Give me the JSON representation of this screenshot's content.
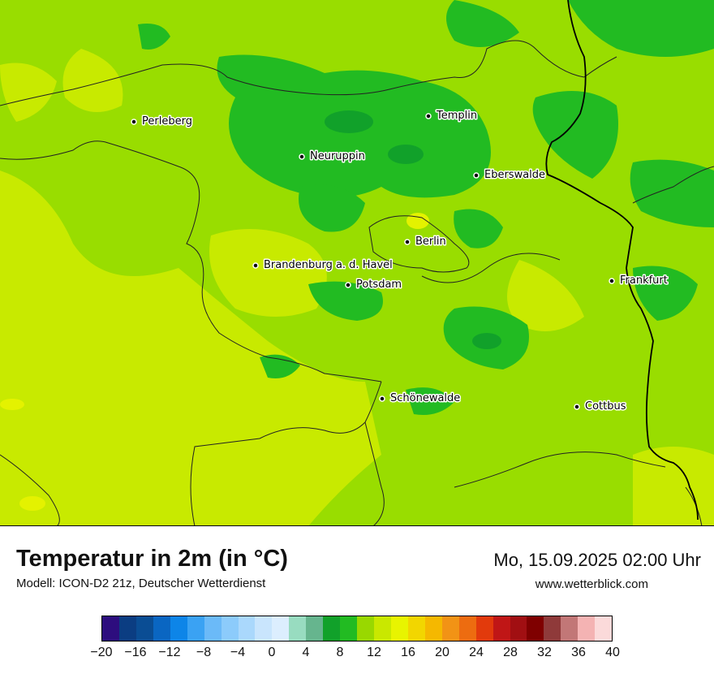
{
  "map": {
    "cities": [
      {
        "name": "Perleberg"
      },
      {
        "name": "Templin"
      },
      {
        "name": "Neuruppin"
      },
      {
        "name": "Eberswalde"
      },
      {
        "name": "Berlin"
      },
      {
        "name": "Brandenburg a. d. Havel"
      },
      {
        "name": "Potsdam"
      },
      {
        "name": "Frankfurt"
      },
      {
        "name": "Schönewalde"
      },
      {
        "name": "Cottbus"
      }
    ]
  },
  "footer": {
    "title": "Temperatur in 2m (in °C)",
    "model": "Modell: ICON-D2 21z, Deutscher Wetterdienst",
    "datetime": "Mo, 15.09.2025 02:00 Uhr",
    "website": "www.wetterblick.com"
  },
  "legend": {
    "unit": "°C",
    "min": -20,
    "max": 40,
    "ticks": [
      "−20",
      "−16",
      "−12",
      "−8",
      "−4",
      "0",
      "4",
      "8",
      "12",
      "16",
      "20",
      "24",
      "28",
      "32",
      "36",
      "40"
    ],
    "colors": [
      "#2d0d7e",
      "#0b3d82",
      "#0a4d94",
      "#0a66c2",
      "#0d85e8",
      "#3aa2f3",
      "#6bbaf8",
      "#8ccbfb",
      "#aad8fc",
      "#c9e5fd",
      "#dceefe",
      "#98dcc0",
      "#66b58e",
      "#11a12a",
      "#22bb22",
      "#99d800",
      "#c9e800",
      "#e8f400",
      "#f2d600",
      "#f5b800",
      "#f29315",
      "#ed6c10",
      "#e23a0c",
      "#c01616",
      "#a10f12",
      "#7f0000",
      "#8f3a3a",
      "#c27777",
      "#f4b3b3",
      "#fbdada"
    ]
  }
}
